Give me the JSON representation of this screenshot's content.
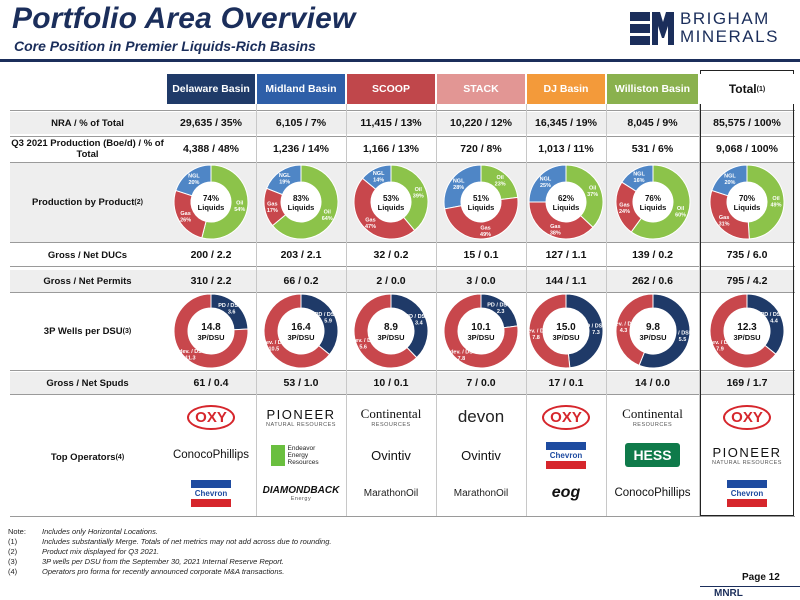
{
  "title": "Portfolio Area Overview",
  "subtitle": "Core Position in Premier Liquids-Rich Basins",
  "logo": {
    "line1": "BRIGHAM",
    "line2": "MINERALS"
  },
  "colors": {
    "navy": "#1b2e5b",
    "oil": "#8cc34a",
    "gas": "#c8474c",
    "ngl": "#4f86c6",
    "pd": "#1f3a68",
    "undev": "#c8474c"
  },
  "columns": [
    {
      "name": "Delaware Basin",
      "color": "#1f3a68",
      "nra": "29,635 / 35%",
      "prod": "4,388 / 48%",
      "mix": {
        "liquids": "74%",
        "ngl": 20,
        "gas": 26,
        "oil": 54,
        "ngl_label": "NGL 20%",
        "gas_label": "Gas 26%",
        "oil_label": "Oil 54%"
      },
      "ducs": "200 / 2.2",
      "permits": "310 / 2.2",
      "wells": {
        "value": "14.8",
        "pd": 3.6,
        "undev": 11.3,
        "pd_label": "PD / DSU., 3.6",
        "undev_label": "Undev. / DSU., 11.3"
      },
      "spuds": "61 / 0.4",
      "operators": [
        "OXY",
        "ConocoPhillips",
        "Chevron"
      ]
    },
    {
      "name": "Midland Basin",
      "color": "#2e5fa8",
      "nra": "6,105 / 7%",
      "prod": "1,236 / 14%",
      "mix": {
        "liquids": "83%",
        "ngl": 19,
        "gas": 17,
        "oil": 64,
        "ngl_label": "NGL 19%",
        "gas_label": "Gas 17%",
        "oil_label": "Oil 64%"
      },
      "ducs": "203 / 2.1",
      "permits": "66 / 0.2",
      "wells": {
        "value": "16.4",
        "pd": 5.9,
        "undev": 10.5,
        "pd_label": "PD / DSU., 5.9",
        "undev_label": "Undev. / DSU., 10.5"
      },
      "spuds": "53 / 1.0",
      "operators": [
        "PIONEER",
        "Endeavor Energy Resources",
        "DIAMONDBACK"
      ]
    },
    {
      "name": "SCOOP",
      "color": "#c0474b",
      "nra": "11,415 / 13%",
      "prod": "1,166 / 13%",
      "mix": {
        "liquids": "53%",
        "ngl": 14,
        "gas": 47,
        "oil": 39,
        "ngl_label": "NGL 14%",
        "gas_label": "Gas 47%",
        "oil_label": "Oil 39%"
      },
      "ducs": "32 / 0.2",
      "permits": "2 / 0.0",
      "wells": {
        "value": "8.9",
        "pd": 3.4,
        "undev": 5.6,
        "pd_label": "PD / DSU., 3.4",
        "undev_label": "Undev. / DSU., 5.6"
      },
      "spuds": "10 / 0.1",
      "operators": [
        "Continental",
        "Ovintiv",
        "MarathonOil"
      ]
    },
    {
      "name": "STACK",
      "color": "#e29694",
      "nra": "10,220 / 12%",
      "prod": "720 / 8%",
      "mix": {
        "liquids": "51%",
        "ngl": 28,
        "gas": 49,
        "oil": 23,
        "ngl_label": "NGL 28%",
        "gas_label": "Gas 49%",
        "oil_label": "Oil 23%"
      },
      "ducs": "15 / 0.1",
      "permits": "3 / 0.0",
      "wells": {
        "value": "10.1",
        "pd": 2.3,
        "undev": 7.8,
        "pd_label": "PD / DSU., 2.3",
        "undev_label": "Undev. / DSU., 7.8"
      },
      "spuds": "7 / 0.0",
      "operators": [
        "devon",
        "Ovintiv",
        "MarathonOil"
      ]
    },
    {
      "name": "DJ Basin",
      "color": "#f39a3a",
      "nra": "16,345 / 19%",
      "prod": "1,013 / 11%",
      "mix": {
        "liquids": "62%",
        "ngl": 25,
        "gas": 38,
        "oil": 37,
        "ngl_label": "NGL 25%",
        "gas_label": "Gas 38%",
        "oil_label": "Oil 37%"
      },
      "ducs": "127 / 1.1",
      "permits": "144 / 1.1",
      "wells": {
        "value": "15.0",
        "pd": 7.3,
        "undev": 7.8,
        "pd_label": "PD / DSU., 7.3",
        "undev_label": "Undev. / DSU., 7.8"
      },
      "spuds": "17 / 0.1",
      "operators": [
        "OXY",
        "Chevron",
        "eog"
      ]
    },
    {
      "name": "Williston Basin",
      "color": "#8ab14e",
      "nra": "8,045 / 9%",
      "prod": "531 / 6%",
      "mix": {
        "liquids": "76%",
        "ngl": 16,
        "gas": 24,
        "oil": 60,
        "ngl_label": "NGL 16%",
        "gas_label": "Gas 24%",
        "oil_label": "Oil 60%"
      },
      "ducs": "139 / 0.2",
      "permits": "262 / 0.6",
      "wells": {
        "value": "9.8",
        "pd": 5.5,
        "undev": 4.3,
        "pd_label": "PD / DSU., 5.5",
        "undev_label": "Undev. / DSU., 4.3"
      },
      "spuds": "14 / 0.0",
      "operators": [
        "Continental",
        "HESS",
        "ConocoPhillips"
      ]
    },
    {
      "name": "Total",
      "sup": "(1)",
      "color": "#ffffff",
      "nra": "85,575 / 100%",
      "prod": "9,068 / 100%",
      "mix": {
        "liquids": "70%",
        "ngl": 20,
        "gas": 31,
        "oil": 49,
        "ngl_label": "NGL 20%",
        "gas_label": "Gas 31%",
        "oil_label": "Oil 49%"
      },
      "ducs": "735 / 6.0",
      "permits": "795 / 4.2",
      "wells": {
        "value": "12.3",
        "pd": 4.4,
        "undev": 7.9,
        "pd_label": "PD / DSU., 4.4",
        "undev_label": "Undev. / DSU., 7.9"
      },
      "spuds": "169 / 1.7",
      "operators": [
        "OXY",
        "PIONEER",
        "Chevron"
      ]
    }
  ],
  "row_labels": {
    "nra": "NRA / % of Total",
    "prod": "Q3 2021 Production (Boe/d) / % of Total",
    "mix": "Production by Product",
    "mix_sup": "(2)",
    "ducs": "Gross / Net DUCs",
    "permits": "Gross / Net Permits",
    "wells": "3P Wells per DSU",
    "wells_sup": "(3)",
    "spuds": "Gross / Net Spuds",
    "operators": "Top Operators",
    "operators_sup": "(4)"
  },
  "donut_text": {
    "liquids_word": "Liquids",
    "dsu_word": "3P/DSU"
  },
  "operator_sublabels": {
    "PIONEER": "NATURAL RESOURCES",
    "Continental": "RESOURCES",
    "DIAMONDBACK": "Energy"
  },
  "notes": [
    {
      "k": "Note:",
      "v": "Includes only Horizontal Locations."
    },
    {
      "k": "(1)",
      "v": "Includes substantially Merge.  Totals of net metrics may not add across due to rounding."
    },
    {
      "k": "(2)",
      "v": "Product mix displayed for Q3 2021."
    },
    {
      "k": "(3)",
      "v": "3P wells per DSU from the September 30, 2021 Internal Reserve Report."
    },
    {
      "k": "(4)",
      "v": "Operators pro forma for recently announced corporate M&A transactions."
    }
  ],
  "page": "Page 12",
  "ticker": "MNRL"
}
